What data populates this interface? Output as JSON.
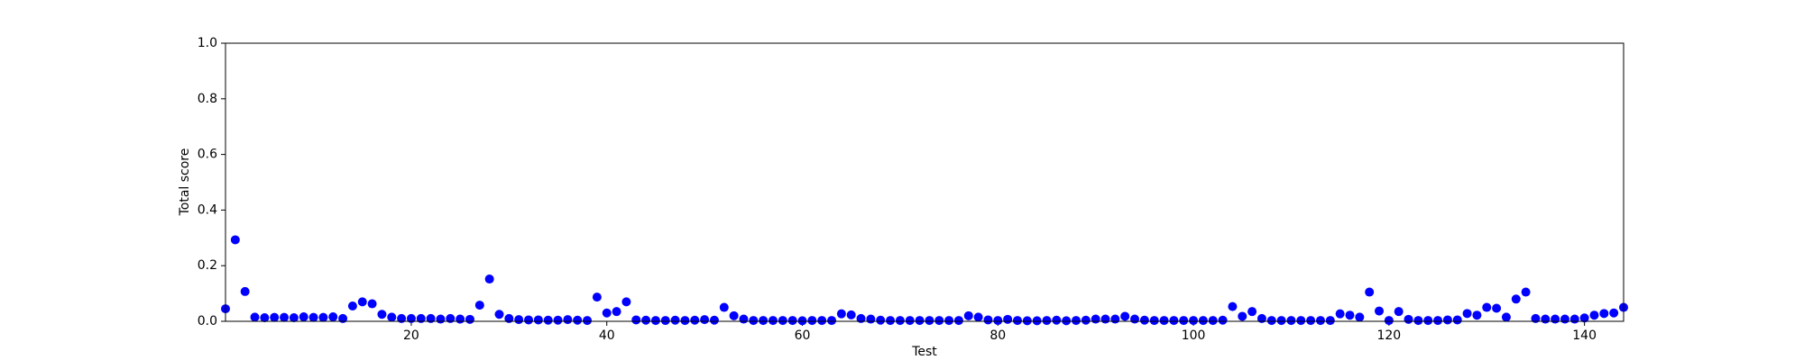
{
  "chart_data": {
    "type": "scatter",
    "x_label": "Test",
    "y_label": "Total score",
    "color": "blue",
    "x": [
      1,
      2,
      3,
      4,
      5,
      6,
      7,
      8,
      9,
      10,
      11,
      12,
      13,
      14,
      15,
      16,
      17,
      18,
      19,
      20,
      21,
      22,
      23,
      24,
      25,
      26,
      27,
      28,
      29,
      30,
      31,
      32,
      33,
      34,
      35,
      36,
      37,
      38,
      39,
      40,
      41,
      42,
      43,
      44,
      45,
      46,
      47,
      48,
      49,
      50,
      51,
      52,
      53,
      54,
      55,
      56,
      57,
      58,
      59,
      60,
      61,
      62,
      63,
      64,
      65,
      66,
      67,
      68,
      69,
      70,
      71,
      72,
      73,
      74,
      75,
      76,
      77,
      78,
      79,
      80,
      81,
      82,
      83,
      84,
      85,
      86,
      87,
      88,
      89,
      90,
      91,
      92,
      93,
      94,
      95,
      96,
      97,
      98,
      99,
      100,
      101,
      102,
      103,
      104,
      105,
      106,
      107,
      108,
      109,
      110,
      111,
      112,
      113,
      114,
      115,
      116,
      117,
      118,
      119,
      120,
      121,
      122,
      123,
      124,
      125,
      126,
      127,
      128,
      129,
      130,
      131,
      132,
      133,
      134,
      135,
      136,
      137,
      138,
      139,
      140,
      141,
      142,
      143,
      144
    ],
    "values": [
      0.045,
      0.293,
      0.107,
      0.015,
      0.013,
      0.014,
      0.014,
      0.013,
      0.016,
      0.014,
      0.014,
      0.016,
      0.01,
      0.055,
      0.07,
      0.063,
      0.025,
      0.015,
      0.01,
      0.01,
      0.01,
      0.01,
      0.008,
      0.01,
      0.008,
      0.007,
      0.058,
      0.152,
      0.025,
      0.01,
      0.006,
      0.005,
      0.005,
      0.004,
      0.004,
      0.006,
      0.004,
      0.003,
      0.087,
      0.03,
      0.035,
      0.07,
      0.005,
      0.004,
      0.003,
      0.003,
      0.004,
      0.003,
      0.004,
      0.006,
      0.004,
      0.05,
      0.02,
      0.008,
      0.003,
      0.003,
      0.003,
      0.003,
      0.003,
      0.002,
      0.003,
      0.003,
      0.003,
      0.027,
      0.023,
      0.01,
      0.008,
      0.004,
      0.003,
      0.003,
      0.003,
      0.003,
      0.003,
      0.003,
      0.003,
      0.003,
      0.02,
      0.015,
      0.005,
      0.003,
      0.007,
      0.003,
      0.002,
      0.002,
      0.003,
      0.004,
      0.002,
      0.003,
      0.004,
      0.008,
      0.008,
      0.008,
      0.018,
      0.008,
      0.004,
      0.003,
      0.003,
      0.003,
      0.003,
      0.003,
      0.003,
      0.003,
      0.004,
      0.053,
      0.018,
      0.035,
      0.01,
      0.003,
      0.003,
      0.003,
      0.003,
      0.003,
      0.003,
      0.003,
      0.027,
      0.022,
      0.015,
      0.105,
      0.037,
      0.003,
      0.035,
      0.007,
      0.003,
      0.003,
      0.003,
      0.005,
      0.005,
      0.028,
      0.022,
      0.05,
      0.047,
      0.015,
      0.08,
      0.105,
      0.01,
      0.008,
      0.008,
      0.008,
      0.008,
      0.012,
      0.022,
      0.028,
      0.03,
      0.05
    ],
    "xlim": [
      1,
      144
    ],
    "xticks": [
      20,
      40,
      60,
      80,
      100,
      120,
      140
    ],
    "ylim": [
      0,
      1
    ],
    "yticks": [
      {
        "value": 0,
        "label": "0.0"
      },
      0.2,
      0.4,
      0.6,
      0.8,
      {
        "value": 1,
        "label": "1.0"
      }
    ]
  }
}
